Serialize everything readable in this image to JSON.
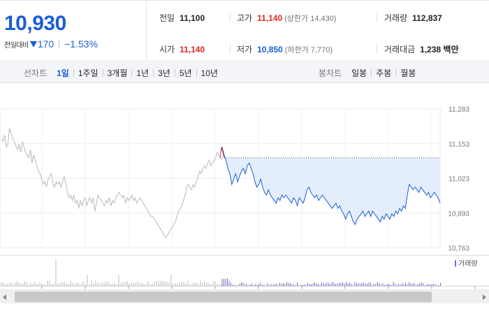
{
  "quote": {
    "price": "10,930",
    "change_label": "전일대비",
    "change_value": "170",
    "change_rate": "−1.53%",
    "direction_icon": "down-triangle-icon"
  },
  "stats": {
    "prev_close": {
      "label": "전일",
      "value": "11,100"
    },
    "high": {
      "label": "고가",
      "value": "11,140",
      "sub": "(상한가 14,430)"
    },
    "volume": {
      "label": "거래량",
      "value": "112,837"
    },
    "open": {
      "label": "시가",
      "value": "11,140"
    },
    "low": {
      "label": "저가",
      "value": "10,850",
      "sub": "(하한가 7,770)"
    },
    "turnover": {
      "label": "거래대금",
      "value": "1,238 백만"
    }
  },
  "toolbar": {
    "line_label": "선차트",
    "line_periods": [
      "1일",
      "1주일",
      "3개월",
      "1년",
      "3년",
      "5년",
      "10년"
    ],
    "line_active": "1일",
    "candle_label": "봉차트",
    "candle_periods": [
      "일봉",
      "주봉",
      "월봉"
    ]
  },
  "colors": {
    "up": "#e0281e",
    "down": "#1a5ed8",
    "prev_line": "#b9b9b9",
    "fill": "#e3edfb",
    "volume_prev": "#b9b9b9",
    "volume_today": "#7c6bc4"
  },
  "chart_data": {
    "type": "line",
    "y_ticks": [
      "11,283",
      "11,153",
      "11,023",
      "10,893",
      "10,763"
    ],
    "ylim": [
      10763,
      11283
    ],
    "reference_price": 11100,
    "volume_legend": "거래량",
    "series": [
      {
        "values": [
          11170,
          11160,
          11185,
          11140,
          11150,
          11210,
          11190,
          11170,
          11160,
          11145,
          11130,
          11150,
          11120,
          11160,
          11140,
          11120,
          11110,
          11100,
          11130,
          11080,
          11110,
          11090,
          11070,
          11050,
          11040,
          11020,
          11000,
          11010,
          10990,
          11020,
          11030,
          11040,
          11000,
          10990,
          11010,
          11000,
          11010,
          10990,
          11010,
          11030,
          11000,
          10970,
          10950,
          10960,
          10940,
          10960,
          10930,
          10940,
          10910,
          10940,
          10920,
          10940,
          10950,
          10920,
          10940,
          10950,
          10930,
          10950,
          10900,
          10930,
          10960,
          10950,
          10940,
          10930,
          10920,
          10940,
          10930,
          10950,
          10920,
          10940,
          10930,
          10950,
          10960,
          10970,
          10960,
          10950,
          10960,
          10930,
          10950,
          10940,
          10950,
          10960,
          10940,
          10950,
          10930,
          10940,
          10950,
          10940,
          10930,
          10920,
          10910,
          10900,
          10890,
          10880,
          10880,
          10870,
          10860,
          10850,
          10840,
          10830,
          10820,
          10810,
          10800,
          10810,
          10820,
          10830,
          10840,
          10850,
          10860,
          10880,
          10900,
          10910,
          10920,
          10940,
          10960,
          10990,
          11000,
          10990,
          10980,
          11000,
          10990,
          11010,
          11030,
          11050,
          11040,
          11060,
          11070,
          11060,
          11080,
          11090,
          11070,
          11080,
          11090,
          11100,
          11120,
          11110,
          11100,
          11090
        ]
      },
      {
        "values": [
          11140,
          11110,
          11090,
          11060,
          11040,
          11000,
          11020,
          11040,
          11010,
          11030,
          11050,
          11060,
          11040,
          11070,
          11080,
          11060,
          11040,
          11010,
          10990,
          11000,
          11020,
          10990,
          10970,
          10960,
          10980,
          10960,
          10950,
          10940,
          10930,
          10950,
          10940,
          10960,
          10950,
          10960,
          10950,
          10940,
          10930,
          10950,
          10940,
          10920,
          10950,
          10940,
          10930,
          10950,
          10980,
          10990,
          10970,
          10960,
          10950,
          10960,
          10940,
          10950,
          10960,
          10950,
          10940,
          10930,
          10920,
          10910,
          10920,
          10930,
          10910,
          10920,
          10900,
          10890,
          10870,
          10890,
          10900,
          10880,
          10860,
          10850,
          10870,
          10880,
          10890,
          10900,
          10880,
          10890,
          10900,
          10880,
          10900,
          10890,
          10880,
          10870,
          10860,
          10880,
          10870,
          10890,
          10880,
          10870,
          10890,
          10880,
          10900,
          10890,
          10910,
          10900,
          10920,
          10910,
          10960,
          11000,
          10990,
          10980,
          10990,
          10980,
          10970,
          10990,
          10980,
          10970,
          10960,
          10970,
          10950,
          10960,
          10970,
          10960,
          10950,
          10930
        ]
      }
    ]
  }
}
